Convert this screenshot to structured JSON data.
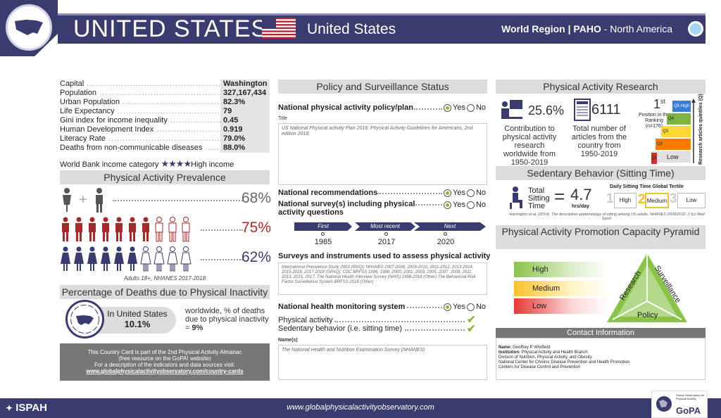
{
  "header": {
    "title": "UNITED STATES",
    "subtitle": "United States",
    "region_label": "World Region | PAHO",
    "region_value": " - North America"
  },
  "facts": [
    {
      "label": "Capital",
      "value": "Washington"
    },
    {
      "label": "Population",
      "value": "327,167,434"
    },
    {
      "label": "Urban Population",
      "value": "82.3%"
    },
    {
      "label": "Life Expectancy",
      "value": "79"
    },
    {
      "label": "Gini index for income inequality",
      "value": "0.45"
    },
    {
      "label": "Human Development Index",
      "value": "0.919"
    },
    {
      "label": "Literacy Rate",
      "value": "79.0%"
    },
    {
      "label": "Deaths from non-communicable diseases",
      "value": "88.0%"
    }
  ],
  "income": {
    "label": "World Bank income category",
    "stars": "★★★★",
    "value": "High income"
  },
  "pa_prevalence": {
    "title": "Physical Activity Prevalence",
    "rows": [
      {
        "pct": "68%"
      },
      {
        "pct": "75%"
      },
      {
        "pct": "62%"
      }
    ],
    "note": "Adults 18+, NHANES 2017-2018"
  },
  "deaths": {
    "title": "Percentage of Deaths due to Physical Inactivity",
    "country_label": "In United States",
    "country_value": "10.1%",
    "world_text": "worldwide, % of deaths due to physical inactivity = ",
    "world_value": "9%"
  },
  "info": {
    "line1": "This Country Card is part of the 2nd Physical Activity Almanac",
    "line2": "(free resource on the GoPA! website)",
    "line3": "For a description of the indicators and data sources visit:",
    "link": "www.globalphysicalactivityobservatory.com/country-cards"
  },
  "policy": {
    "title": "Policy and Surveillance Status",
    "plan_label": "National physical activity policy/plan",
    "yes": "Yes",
    "no": "No",
    "title_label": "Title",
    "plan_title": "US National Physical activity Plan 2016, Physical Activity Guidelines for Americans, 2nd edition 2018;",
    "recommendations_label": "National recommendations",
    "surveys_label": "National survey(s) including physical activity questions",
    "timeline": [
      {
        "head": "First",
        "year": "1985"
      },
      {
        "head": "Most recent",
        "year": "2017"
      },
      {
        "head": "Next",
        "year": "2020"
      }
    ],
    "instruments_label": "Surveys and instruments used to assess physical activity",
    "instruments_text": "International Prevalence Study 2003 (IPAQ); NHANES 2007-2008, 2009-2010, 2011-2012, 2013-2014, 2015-2016, 2017-2018 (GPAQ); CDC BRFSS 1996, 1998, 2000, 2001, 2003, 2005, 2007, 2009, 2011, 2013, 2015, 2017; The National Health Interview Survey (NHIS) 1998-2018 (Other) The Behavioral Risk Factor Surveillance System BRFSS 2018 (Other)",
    "monitoring_label": "National health monitoring system",
    "pa_item": "Physical activity",
    "sed_item": "Sedentary behavior (i.e. sitting time)",
    "names_label": "Name(s)",
    "names_text": "The National Health and Nutrition Examination Survey (NHANES)"
  },
  "research": {
    "title": "Physical Activity Research",
    "contribution": "25.6%",
    "contribution_text": "Contribution to physical activity research worldwide from 1950-2019",
    "articles": "6111",
    "articles_text": "Total number of articles from the country from 1950-2019",
    "rank": "1",
    "rank_sup": "st",
    "rank_text": "Position in the Ranking",
    "rank_n": "(n=176)",
    "quintile_axis": "Research articles quintiles (Q)",
    "q_labels": [
      "Q5",
      "Q4",
      "Q3",
      "Q2",
      "Q1"
    ],
    "q_high": "High",
    "q_low": "Low"
  },
  "sedentary": {
    "title": "Sedentary Behavior (Sitting Time)",
    "label": "Total Sitting Time",
    "value": "4.7",
    "unit": "hrs/day",
    "tertile_title": "Daily Sitting Time Global Tertile",
    "tertiles": [
      {
        "num": "1",
        "label": "High"
      },
      {
        "num": "2",
        "label": "Medium"
      },
      {
        "num": "3",
        "label": "Low"
      }
    ],
    "source": "Harrington et al. (2014). The descriptive epidemiology of sitting among US adults. NHANES 2009/2010. J Sci Med Sport."
  },
  "pyramid": {
    "title": "Physical Activity Promotion Capacity Pyramid",
    "levels": [
      "High",
      "Medium",
      "Low"
    ],
    "research": "Research",
    "surveillance": "Surveillance",
    "policy": "Policy"
  },
  "contact": {
    "title": "Contact Information",
    "name_label": "Name:",
    "name": "Geoffrey P Whitfield",
    "inst_label": "Institution:",
    "inst": "Physical Activity and Health Branch",
    "line3": "Division of Nutrition, Physical Activity, and Obesity",
    "line4": "National Center for Chronic Disease Prevention and Health Promotion",
    "line5": "Centers for Disease Control and Prevention"
  },
  "footer": {
    "url": "www.globalphysicalactivityobservatory.com",
    "ispah": "ISPAH",
    "gopa_small": "Global Observatory for Physical Activity",
    "gopa": "GoPA"
  },
  "colors": {
    "navy": "#3a3b6e",
    "red": "#a52a2a",
    "green": "#8ab83a",
    "gray": "#dcdcdc"
  }
}
